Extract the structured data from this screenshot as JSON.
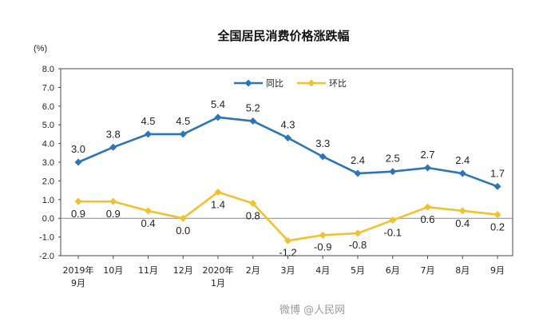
{
  "chart_data": {
    "type": "line",
    "title": "全国居民消费价格涨跌幅",
    "ylabel": "(%)",
    "ylim": [
      -2.0,
      8.0
    ],
    "yticks": [
      "8.0",
      "7.0",
      "6.0",
      "5.0",
      "4.0",
      "3.0",
      "2.0",
      "1.0",
      "0.0",
      "-1.0",
      "-2.0"
    ],
    "categories": [
      {
        "line1": "2019年",
        "line2": "9月"
      },
      {
        "line1": "10月",
        "line2": ""
      },
      {
        "line1": "11月",
        "line2": ""
      },
      {
        "line1": "12月",
        "line2": ""
      },
      {
        "line1": "2020年",
        "line2": "1月"
      },
      {
        "line1": "2月",
        "line2": ""
      },
      {
        "line1": "3月",
        "line2": ""
      },
      {
        "line1": "4月",
        "line2": ""
      },
      {
        "line1": "5月",
        "line2": ""
      },
      {
        "line1": "6月",
        "line2": ""
      },
      {
        "line1": "7月",
        "line2": ""
      },
      {
        "line1": "8月",
        "line2": ""
      },
      {
        "line1": "9月",
        "line2": ""
      }
    ],
    "series": [
      {
        "name": "同比",
        "color": "#2e75b6",
        "values": [
          3.0,
          3.8,
          4.5,
          4.5,
          5.4,
          5.2,
          4.3,
          3.3,
          2.4,
          2.5,
          2.7,
          2.4,
          1.7
        ],
        "labels": [
          "3.0",
          "3.8",
          "4.5",
          "4.5",
          "5.4",
          "5.2",
          "4.3",
          "3.3",
          "2.4",
          "2.5",
          "2.7",
          "2.4",
          "1.7"
        ]
      },
      {
        "name": "环比",
        "color": "#f2c12e",
        "values": [
          0.9,
          0.9,
          0.4,
          0.0,
          1.4,
          0.8,
          -1.2,
          -0.9,
          -0.8,
          -0.1,
          0.6,
          0.4,
          0.2
        ],
        "labels": [
          "0.9",
          "0.9",
          "0.4",
          "0.0",
          "1.4",
          "0.8",
          "-1.2",
          "-0.9",
          "-0.8",
          "-0.1",
          "0.6",
          "0.4",
          "0.2"
        ]
      }
    ],
    "legend": "top-right"
  },
  "watermark": "微博 @人民网"
}
